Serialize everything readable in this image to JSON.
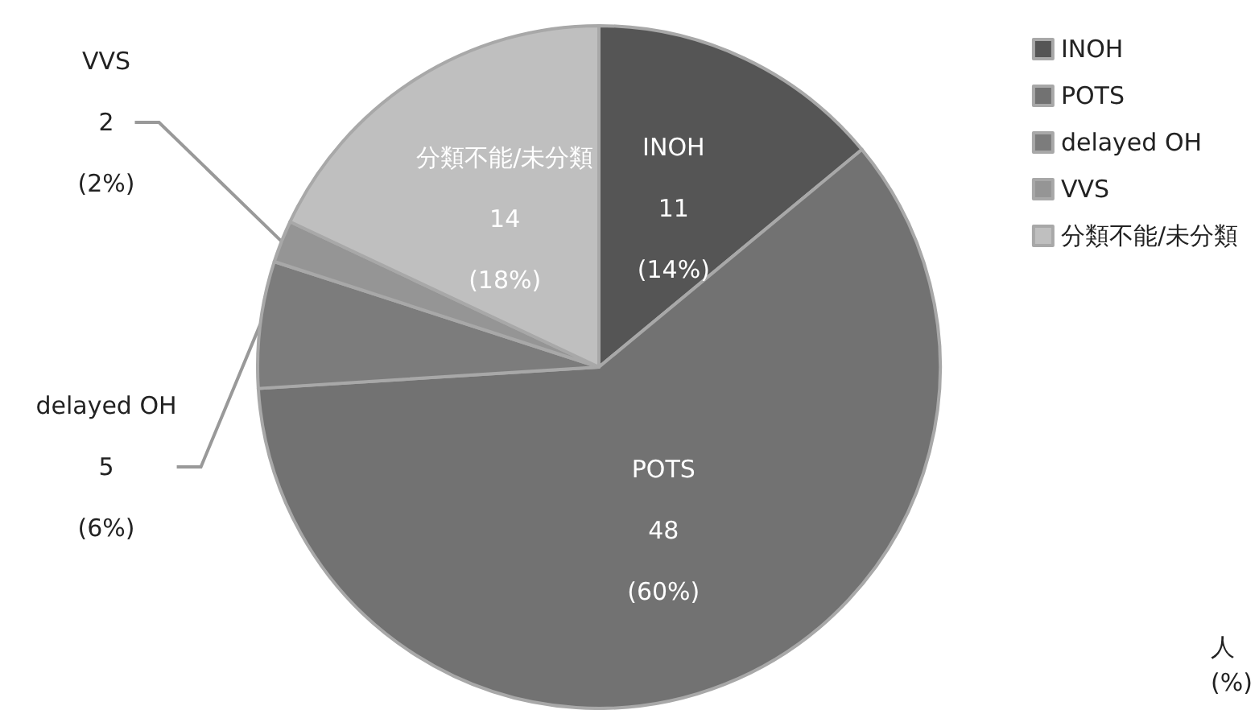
{
  "chart_data": {
    "type": "pie",
    "categories": [
      "INOH",
      "POTS",
      "delayed OH",
      "VVS",
      "分類不能/未分類"
    ],
    "values": [
      14,
      60,
      6,
      2,
      18
    ],
    "colors": [
      "#555555",
      "#727272",
      "#7c7c7c",
      "#959595",
      "#bfbfbf"
    ],
    "value_labels": [
      "11\n(14%)",
      "48\n(60%)",
      "5\n(6%)",
      "2\n(2%)",
      "14\n(18%)"
    ],
    "legend": "top right",
    "annotations": [
      "人\n(%)"
    ]
  }
}
